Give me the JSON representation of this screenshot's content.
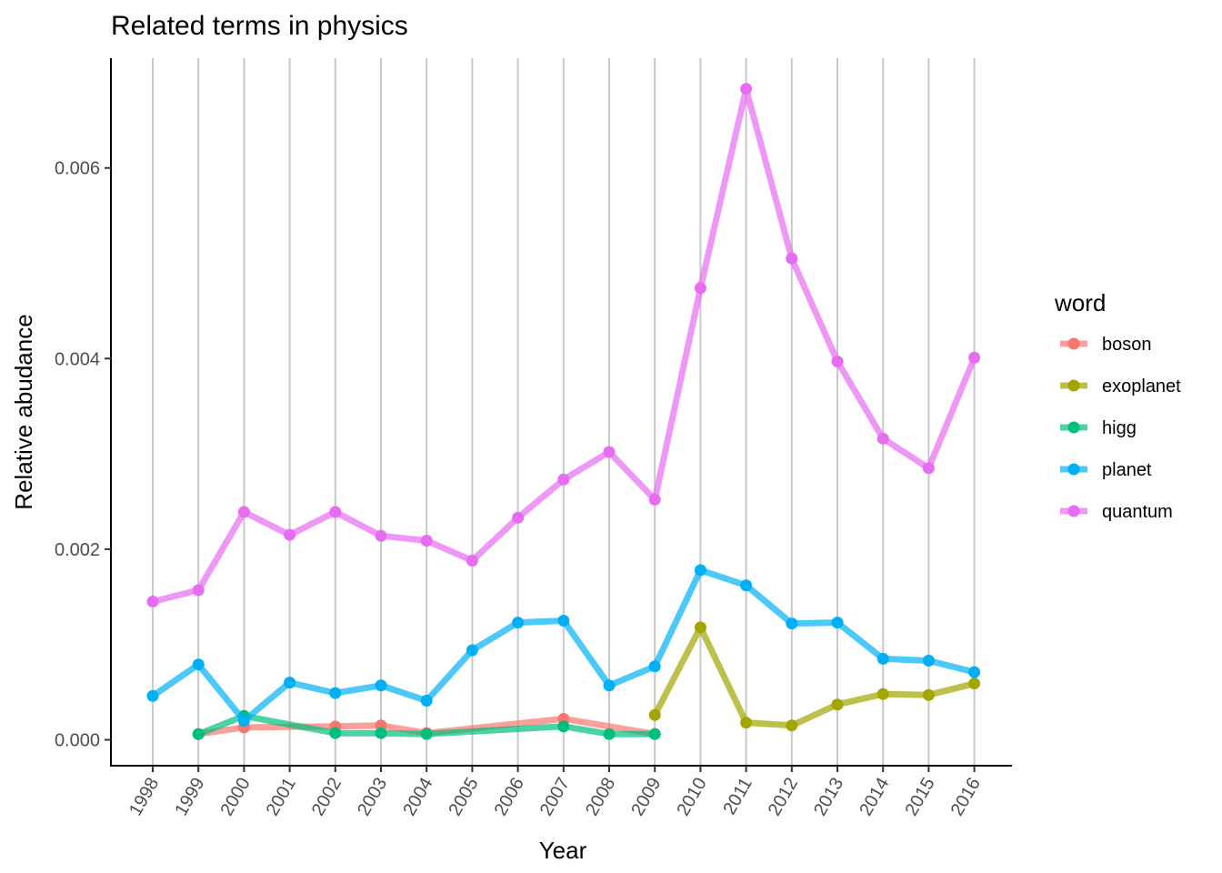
{
  "chart_data": {
    "type": "line",
    "title": "Related terms in physics",
    "xlabel": "Year",
    "ylabel": "Relative abudance",
    "x": [
      1998,
      1999,
      2000,
      2001,
      2002,
      2003,
      2004,
      2005,
      2006,
      2007,
      2008,
      2009,
      2010,
      2011,
      2012,
      2013,
      2014,
      2015,
      2016
    ],
    "x_tick_labels": [
      "1998",
      "1999",
      "2000",
      "2001",
      "2002",
      "2003",
      "2004",
      "2005",
      "2006",
      "2007",
      "2008",
      "2009",
      "2010",
      "2011",
      "2012",
      "2013",
      "2014",
      "2015",
      "2016"
    ],
    "y_ticks": [
      0.0,
      0.002,
      0.004,
      0.006
    ],
    "y_tick_labels": [
      "0.000",
      "0.002",
      "0.004",
      "0.006"
    ],
    "ylim": [
      -0.00027,
      0.0074
    ],
    "grid": "vertical major lines",
    "legend": {
      "title": "word",
      "position": "right"
    },
    "series": [
      {
        "name": "boson",
        "color": "#F8766D",
        "points": [
          [
            1999,
            6e-05
          ],
          [
            2000,
            0.00013
          ],
          [
            2002,
            0.00014
          ],
          [
            2003,
            0.00015
          ],
          [
            2004,
            7e-05
          ],
          [
            2007,
            0.00022
          ],
          [
            2009,
            6e-05
          ]
        ]
      },
      {
        "name": "exoplanet",
        "color": "#A3A500",
        "points": [
          [
            2009,
            0.00026
          ],
          [
            2010,
            0.00118
          ],
          [
            2011,
            0.00018
          ],
          [
            2012,
            0.00015
          ],
          [
            2013,
            0.00037
          ],
          [
            2014,
            0.00048
          ],
          [
            2015,
            0.00047
          ],
          [
            2016,
            0.00059
          ]
        ]
      },
      {
        "name": "higg",
        "color": "#00BF7D",
        "points": [
          [
            1999,
            6e-05
          ],
          [
            2000,
            0.00025
          ],
          [
            2002,
            7e-05
          ],
          [
            2003,
            7e-05
          ],
          [
            2004,
            6e-05
          ],
          [
            2007,
            0.00014
          ],
          [
            2008,
            6e-05
          ],
          [
            2009,
            6e-05
          ]
        ]
      },
      {
        "name": "planet",
        "color": "#00B0F6",
        "points": [
          [
            1998,
            0.00046
          ],
          [
            1999,
            0.00079
          ],
          [
            2000,
            0.0002
          ],
          [
            2001,
            0.0006
          ],
          [
            2002,
            0.00049
          ],
          [
            2003,
            0.00057
          ],
          [
            2004,
            0.00041
          ],
          [
            2005,
            0.00094
          ],
          [
            2006,
            0.00123
          ],
          [
            2007,
            0.00125
          ],
          [
            2008,
            0.00057
          ],
          [
            2009,
            0.00077
          ],
          [
            2010,
            0.00178
          ],
          [
            2011,
            0.00162
          ],
          [
            2012,
            0.00122
          ],
          [
            2013,
            0.00123
          ],
          [
            2014,
            0.00085
          ],
          [
            2015,
            0.00083
          ],
          [
            2016,
            0.00071
          ]
        ]
      },
      {
        "name": "quantum",
        "color": "#E76BF3",
        "points": [
          [
            1998,
            0.00145
          ],
          [
            1999,
            0.00157
          ],
          [
            2000,
            0.00239
          ],
          [
            2001,
            0.00215
          ],
          [
            2002,
            0.00239
          ],
          [
            2003,
            0.00214
          ],
          [
            2004,
            0.00209
          ],
          [
            2005,
            0.00188
          ],
          [
            2006,
            0.00233
          ],
          [
            2007,
            0.00273
          ],
          [
            2008,
            0.00302
          ],
          [
            2009,
            0.00252
          ],
          [
            2010,
            0.00474
          ],
          [
            2011,
            0.00683
          ],
          [
            2012,
            0.00505
          ],
          [
            2013,
            0.00397
          ],
          [
            2014,
            0.00316
          ],
          [
            2015,
            0.00285
          ],
          [
            2016,
            0.00401
          ]
        ]
      }
    ]
  }
}
